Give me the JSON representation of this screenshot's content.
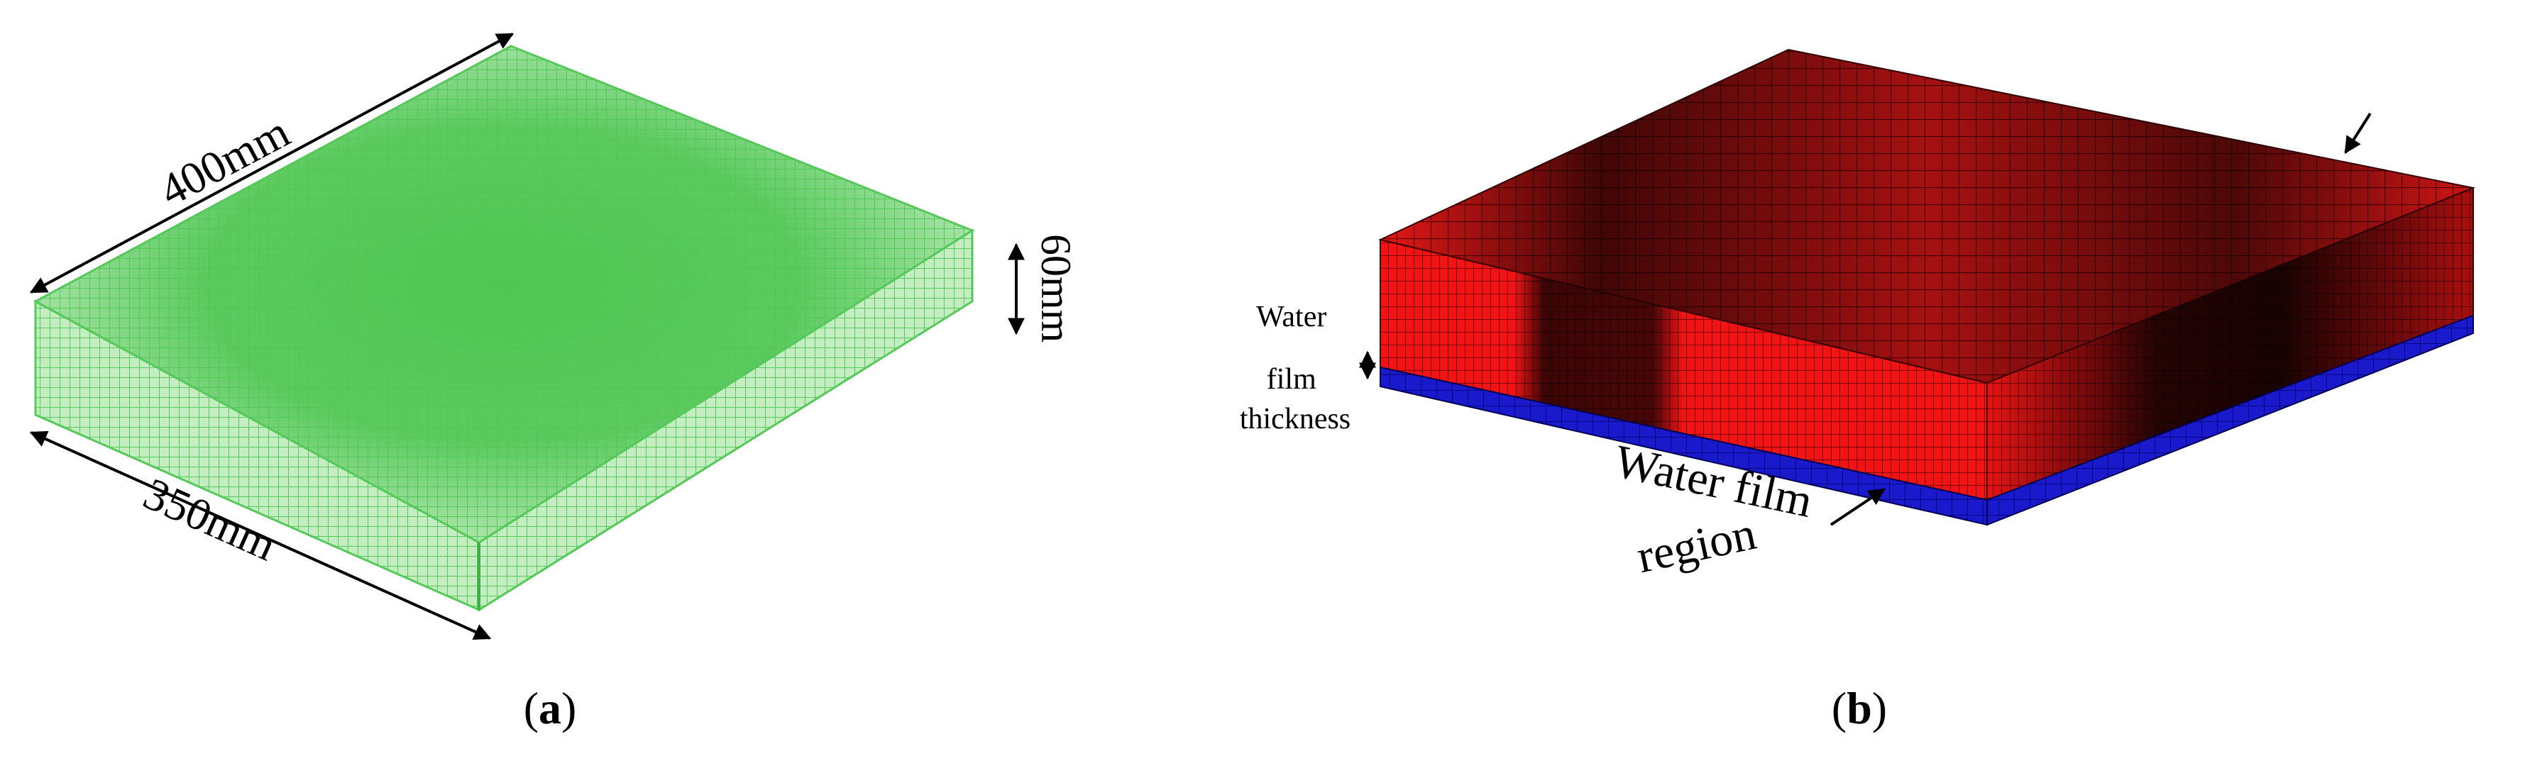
{
  "panel_a": {
    "dim_length": "400mm",
    "dim_width": "350mm",
    "dim_height": "60mm",
    "caption_letter": "a",
    "mesh_color": "#55c95a"
  },
  "panel_b": {
    "water_film_thickness_label": [
      "Water",
      "film",
      "thickness"
    ],
    "water_film_region_label": [
      "Water film",
      "region"
    ],
    "caption_letter": "b",
    "slab_color": "#ff1a1a",
    "water_film_color": "#1a1acc"
  }
}
